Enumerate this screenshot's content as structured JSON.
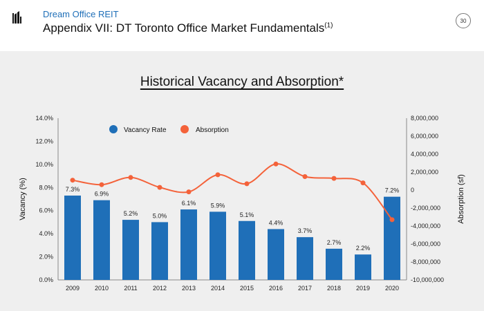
{
  "header": {
    "company": "Dream Office REIT",
    "title": "Appendix VII: DT Toronto Office Market Fundamentals",
    "title_footnote": "(1)",
    "page_number": "30"
  },
  "colors": {
    "bar": "#1f6fb8",
    "line": "#f4623a",
    "brand": "#1f6fb8"
  },
  "chart_data": {
    "type": "bar",
    "title": "Historical Vacancy and Absorption*",
    "categories": [
      "2009",
      "2010",
      "2011",
      "2012",
      "2013",
      "2014",
      "2015",
      "2016",
      "2017",
      "2018",
      "2019",
      "2020"
    ],
    "series": [
      {
        "name": "Vacancy Rate",
        "type": "bar",
        "axis": "left",
        "values": [
          7.3,
          6.9,
          5.2,
          5.0,
          6.1,
          5.9,
          5.1,
          4.4,
          3.7,
          2.7,
          2.2,
          7.2
        ],
        "labels": [
          "7.3%",
          "6.9%",
          "5.2%",
          "5.0%",
          "6.1%",
          "5.9%",
          "5.1%",
          "4.4%",
          "3.7%",
          "2.7%",
          "2.2%",
          "7.2%"
        ]
      },
      {
        "name": "Absorption",
        "type": "line",
        "axis": "right",
        "values": [
          1100000,
          600000,
          1400000,
          300000,
          -200000,
          1700000,
          700000,
          2900000,
          1500000,
          1300000,
          800000,
          -3300000
        ]
      }
    ],
    "ylabel": "Vacancy (%)",
    "ylim": [
      0,
      14
    ],
    "y_ticks": [
      "0.0%",
      "2.0%",
      "4.0%",
      "6.0%",
      "8.0%",
      "10.0%",
      "12.0%",
      "14.0%"
    ],
    "y2label": "Absorption (sf)",
    "y2lim": [
      -10000000,
      8000000
    ],
    "y2_ticks": [
      "-10,000,000",
      "-8,000,000",
      "-6,000,000",
      "-4,000,000",
      "-2,000,000",
      "0",
      "2,000,000",
      "4,000,000",
      "6,000,000",
      "8,000,000"
    ],
    "legend": "top-left",
    "grid": false
  }
}
